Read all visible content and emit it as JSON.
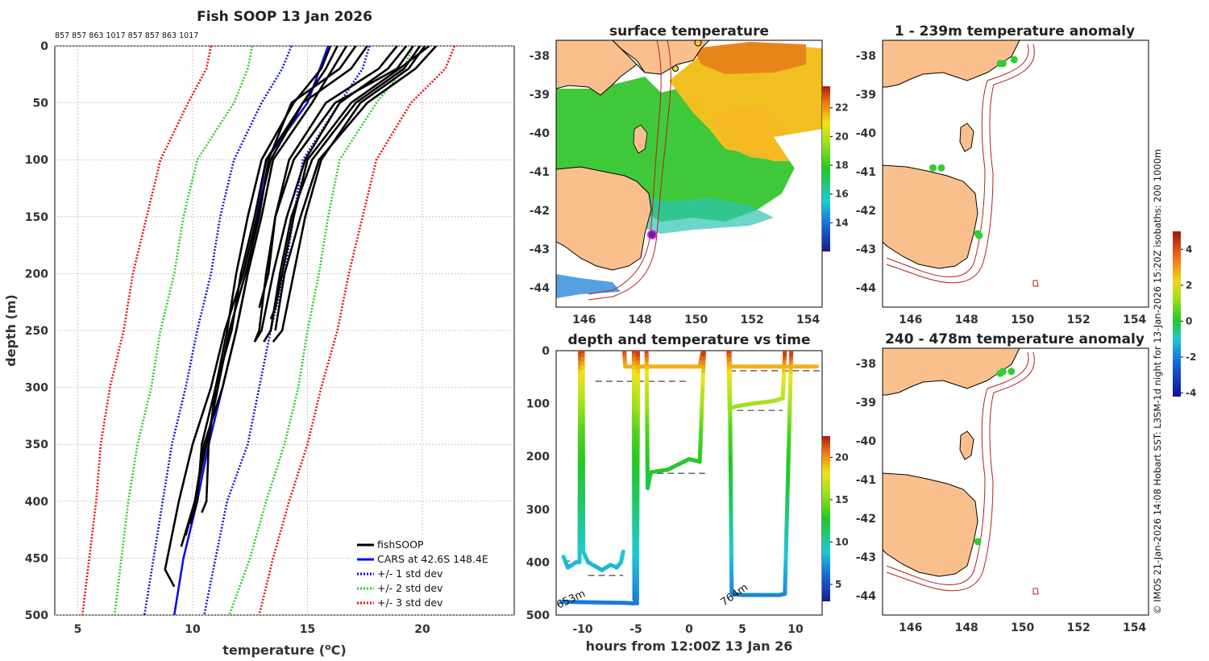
{
  "chart_data": [
    {
      "type": "line",
      "title": "Fish SOOP 13 Jan 2026",
      "top_annotation": "857 857 863 1017 857 857 863 1017",
      "xlabel": "temperature (",
      "xlabel_super": "o",
      "xlabel_end": "C)",
      "ylabel": "depth (m)",
      "xlim": [
        4,
        24
      ],
      "ylim": [
        0,
        500
      ],
      "x_ticks": [
        "5",
        "10",
        "15",
        "20"
      ],
      "y_ticks": [
        "0",
        "50",
        "100",
        "150",
        "200",
        "250",
        "300",
        "350",
        "400",
        "450",
        "500"
      ],
      "legend": {
        "position": "bottom-right",
        "entries": [
          "fishSOOP",
          "CARS at 42.6S 148.4E",
          "+/- 1 std dev",
          "+/- 2 std dev",
          "+/- 3 std dev"
        ],
        "colors": [
          "#000000",
          "#0000ff",
          "#0000ff",
          "#22cc22",
          "#ff0000"
        ]
      },
      "series": [
        {
          "name": "CARS at 42.6S 148.4E",
          "color": "#1010e0",
          "style": "solid",
          "depth": [
            0,
            50,
            100,
            150,
            200,
            250,
            300,
            350,
            400,
            450,
            500
          ],
          "values": [
            15.9,
            15.0,
            13.2,
            12.8,
            12.4,
            11.9,
            11.3,
            10.7,
            10.2,
            9.6,
            9.2
          ]
        },
        {
          "name": "+/- 1 std dev",
          "color": "#1515d8",
          "style": "dotted",
          "depth": [
            0,
            20,
            50,
            100,
            150,
            200,
            250,
            300,
            350,
            400,
            450,
            500
          ],
          "lower": [
            14.3,
            13.9,
            13.0,
            11.8,
            11.2,
            10.8,
            10.2,
            9.7,
            9.1,
            8.7,
            8.3,
            7.9
          ],
          "upper": [
            17.7,
            17.4,
            16.4,
            14.8,
            14.4,
            14.0,
            13.4,
            12.9,
            12.4,
            11.5,
            11.0,
            10.5
          ]
        },
        {
          "name": "+/- 2 std dev",
          "color": "#2bd02b",
          "style": "dotted",
          "depth": [
            0,
            20,
            50,
            100,
            150,
            200,
            250,
            300,
            350,
            400,
            450,
            500
          ],
          "lower": [
            12.6,
            12.4,
            11.8,
            10.2,
            9.6,
            9.2,
            8.6,
            8.2,
            7.6,
            7.2,
            6.9,
            6.6
          ],
          "upper": [
            19.6,
            19.2,
            18.0,
            16.4,
            15.9,
            15.5,
            15.0,
            14.6,
            14.0,
            13.2,
            12.5,
            11.6
          ]
        },
        {
          "name": "+/- 3 std dev",
          "color": "#ee1111",
          "style": "dotted",
          "depth": [
            0,
            20,
            50,
            100,
            150,
            200,
            250,
            300,
            350,
            400,
            450,
            500
          ],
          "lower": [
            10.8,
            10.6,
            9.8,
            8.6,
            8.0,
            7.4,
            7.0,
            6.4,
            6.0,
            5.8,
            5.5,
            5.2
          ],
          "upper": [
            21.4,
            21.0,
            19.5,
            18.0,
            17.4,
            16.8,
            16.3,
            15.6,
            15.0,
            14.2,
            13.5,
            12.9
          ]
        },
        {
          "name": "fishSOOP",
          "color": "#000000",
          "style": "solid",
          "profiles": [
            {
              "depth": [
                0,
                20,
                50,
                100,
                150,
                200,
                250,
                300,
                350,
                400,
                460,
                475
              ],
              "values": [
                17.6,
                16.9,
                14.8,
                13.4,
                12.8,
                12.2,
                11.4,
                10.8,
                10.0,
                9.4,
                8.8,
                9.2
              ]
            },
            {
              "depth": [
                0,
                20,
                50,
                100,
                150,
                200,
                250,
                300,
                350,
                400,
                430
              ],
              "values": [
                16.7,
                16.1,
                15.2,
                13.5,
                13.0,
                12.4,
                11.9,
                11.3,
                10.5,
                10.1,
                9.7
              ]
            },
            {
              "depth": [
                0,
                20,
                50,
                100,
                150,
                200,
                250,
                300,
                350,
                400,
                420
              ],
              "values": [
                16.3,
                15.8,
                14.8,
                13.2,
                12.7,
                12.1,
                11.7,
                11.0,
                10.4,
                10.2,
                9.9
              ]
            },
            {
              "depth": [
                0,
                20,
                50,
                100,
                150,
                200,
                250,
                300,
                350,
                400,
                440
              ],
              "values": [
                17.1,
                16.4,
                14.3,
                13.3,
                12.9,
                12.3,
                11.6,
                11.1,
                10.6,
                10.1,
                9.5
              ]
            },
            {
              "depth": [
                0,
                20,
                50,
                100,
                150,
                200,
                250,
                300,
                350,
                400,
                410
              ],
              "values": [
                16.0,
                15.6,
                14.4,
                13.0,
                12.4,
                11.9,
                11.5,
                11.0,
                10.7,
                10.6,
                10.4
              ]
            },
            {
              "depth": [
                0,
                20,
                50,
                100,
                150,
                200,
                250,
                260
              ],
              "values": [
                19.9,
                19.2,
                17.1,
                15.2,
                14.3,
                13.8,
                13.4,
                13.1
              ]
            },
            {
              "depth": [
                0,
                20,
                50,
                100,
                150,
                200,
                230,
                240
              ],
              "values": [
                20.3,
                19.0,
                16.9,
                15.0,
                14.4,
                13.9,
                13.6,
                13.4
              ]
            },
            {
              "depth": [
                0,
                20,
                50,
                100,
                150,
                200,
                230,
                250,
                260
              ],
              "values": [
                19.3,
                18.5,
                16.4,
                14.9,
                14.1,
                13.5,
                13.2,
                13.0,
                12.7
              ]
            },
            {
              "depth": [
                0,
                20,
                50,
                100,
                150,
                200,
                250
              ],
              "values": [
                20.6,
                19.7,
                17.6,
                15.5,
                14.7,
                14.0,
                13.6
              ]
            },
            {
              "depth": [
                0,
                20,
                50,
                100,
                150,
                200,
                250,
                260
              ],
              "values": [
                19.6,
                18.9,
                16.2,
                14.4,
                13.6,
                13.2,
                12.9,
                12.7
              ]
            },
            {
              "depth": [
                0,
                20,
                50,
                100,
                150,
                200,
                230
              ],
              "values": [
                18.9,
                18.1,
                15.8,
                14.2,
                13.6,
                13.3,
                12.9
              ]
            },
            {
              "depth": [
                0,
                20,
                50,
                100,
                150,
                200,
                250,
                260
              ],
              "values": [
                20.1,
                19.4,
                17.3,
                15.6,
                14.9,
                14.4,
                13.9,
                13.5
              ]
            }
          ]
        }
      ]
    },
    {
      "type": "heatmap",
      "title": "surface temperature",
      "x_ticks": [
        "146",
        "148",
        "150",
        "152",
        "154"
      ],
      "y_ticks": [
        "-38",
        "-39",
        "-40",
        "-41",
        "-42",
        "-43",
        "-44"
      ],
      "xlim": [
        145,
        154.5
      ],
      "ylim": [
        -44.5,
        -37.6
      ],
      "colorbar": {
        "min": 12,
        "max": 23.5,
        "ticks": [
          "14",
          "16",
          "18",
          "20",
          "22"
        ]
      }
    },
    {
      "type": "scatter",
      "title": "1 - 239m temperature anomaly",
      "x_ticks": [
        "146",
        "148",
        "150",
        "152",
        "154"
      ],
      "y_ticks": [
        "-38",
        "-39",
        "-40",
        "-41",
        "-42",
        "-43",
        "-44"
      ],
      "xlim": [
        145,
        154.5
      ],
      "ylim": [
        -44.5,
        -37.6
      ],
      "points": [
        {
          "lon": 149.2,
          "lat": -38.2
        },
        {
          "lon": 149.3,
          "lat": -38.2
        },
        {
          "lon": 149.7,
          "lat": -38.1
        },
        {
          "lon": 146.8,
          "lat": -40.9
        },
        {
          "lon": 147.1,
          "lat": -40.9
        },
        {
          "lon": 148.4,
          "lat": -42.6
        },
        {
          "lon": 148.45,
          "lat": -42.65
        }
      ]
    },
    {
      "type": "line",
      "title": "depth and temperature vs time",
      "xlabel": "hours from 12:00Z 13 Jan 26",
      "xlim": [
        -12.5,
        12.5
      ],
      "ylim": [
        0,
        500
      ],
      "x_ticks": [
        "-10",
        "-5",
        "0",
        "5",
        "10"
      ],
      "y_ticks": [
        "0",
        "100",
        "200",
        "300",
        "400",
        "500"
      ],
      "annotations": [
        "653m",
        "764m"
      ],
      "colorbar": {
        "min": 3,
        "max": 22.5,
        "ticks": [
          "5",
          "10",
          "15",
          "20"
        ]
      },
      "segments": [
        {
          "hours": [
            -11.8,
            -11.4,
            -10.6,
            -10.3,
            -10.25
          ],
          "depth": [
            390,
            410,
            400,
            400,
            0
          ]
        },
        {
          "hours": [
            -10.0,
            -9.95,
            -9.5,
            -8.2,
            -7.4,
            -6.8,
            -6.4,
            -6.2
          ],
          "depth": [
            0,
            380,
            400,
            415,
            405,
            410,
            400,
            380
          ]
        },
        {
          "hours": [
            -6.1,
            -6.0,
            -5.5,
            -5.0,
            -4.9
          ],
          "depth": [
            0,
            30,
            30,
            30,
            0
          ]
        },
        {
          "hours": [
            -5.2,
            -5.15,
            -4.9,
            -4.8
          ],
          "depth": [
            0,
            470,
            478,
            0
          ]
        },
        {
          "hours": [
            -12.0,
            -9.0,
            -6.0,
            -5.2
          ],
          "depth": [
            475,
            476,
            477,
            478
          ]
        },
        {
          "hours": [
            -4.8,
            -4.5,
            -4.0,
            -3.0,
            -2.0,
            -1.0,
            0.0,
            0.5,
            1.0,
            1.3
          ],
          "depth": [
            30,
            30,
            30,
            30,
            30,
            30,
            30,
            30,
            30,
            0
          ]
        },
        {
          "hours": [
            -4.0,
            -3.9,
            -3.6,
            -2.0,
            -1.0,
            0.0,
            1.0,
            1.4
          ],
          "depth": [
            0,
            260,
            230,
            225,
            215,
            205,
            210,
            0
          ]
        },
        {
          "hours": [
            3.7,
            3.8,
            4.5,
            6.0,
            8.0,
            8.8,
            9.0
          ],
          "depth": [
            0,
            110,
            105,
            100,
            95,
            90,
            0
          ]
        },
        {
          "hours": [
            3.8,
            4.0,
            5.0,
            6.0,
            7.0,
            8.5,
            9.0,
            9.6
          ],
          "depth": [
            0,
            460,
            462,
            462,
            462,
            462,
            460,
            0
          ]
        },
        {
          "hours": [
            3.9,
            6.0,
            8.0,
            9.0,
            10.0,
            12.0
          ],
          "depth": [
            30,
            30,
            30,
            30,
            30,
            30
          ]
        }
      ],
      "reference_lines": [
        {
          "hours": [
            -11.8,
            -10.2
          ],
          "depth": 398
        },
        {
          "hours": [
            -9.5,
            -6.2
          ],
          "depth": 425
        },
        {
          "hours": [
            -8.8,
            0.0
          ],
          "depth": 58
        },
        {
          "hours": [
            -4.0,
            1.5
          ],
          "depth": 232
        },
        {
          "hours": [
            3.8,
            12.4
          ],
          "depth": 38
        },
        {
          "hours": [
            4.5,
            8.8
          ],
          "depth": 113
        }
      ]
    },
    {
      "type": "scatter",
      "title": "240 - 478m temperature anomaly",
      "x_ticks": [
        "146",
        "148",
        "150",
        "152",
        "154"
      ],
      "y_ticks": [
        "-38",
        "-39",
        "-40",
        "-41",
        "-42",
        "-43",
        "-44"
      ],
      "xlim": [
        145,
        154.5
      ],
      "ylim": [
        -44.5,
        -37.6
      ],
      "points": [
        {
          "lon": 149.2,
          "lat": -38.25
        },
        {
          "lon": 149.3,
          "lat": -38.2
        },
        {
          "lon": 149.6,
          "lat": -38.2
        },
        {
          "lon": 148.4,
          "lat": -42.6
        }
      ],
      "colorbar": {
        "min": -4.2,
        "max": 5,
        "ticks": [
          "-4",
          "-2",
          "0",
          "2",
          "4"
        ]
      }
    }
  ],
  "side_note": "© IMOS 21-Jan-2026 14:08 Hobart SST: L3SM-1d night for 13-Jan-2026 15:20Z isobaths: 200  1000m"
}
